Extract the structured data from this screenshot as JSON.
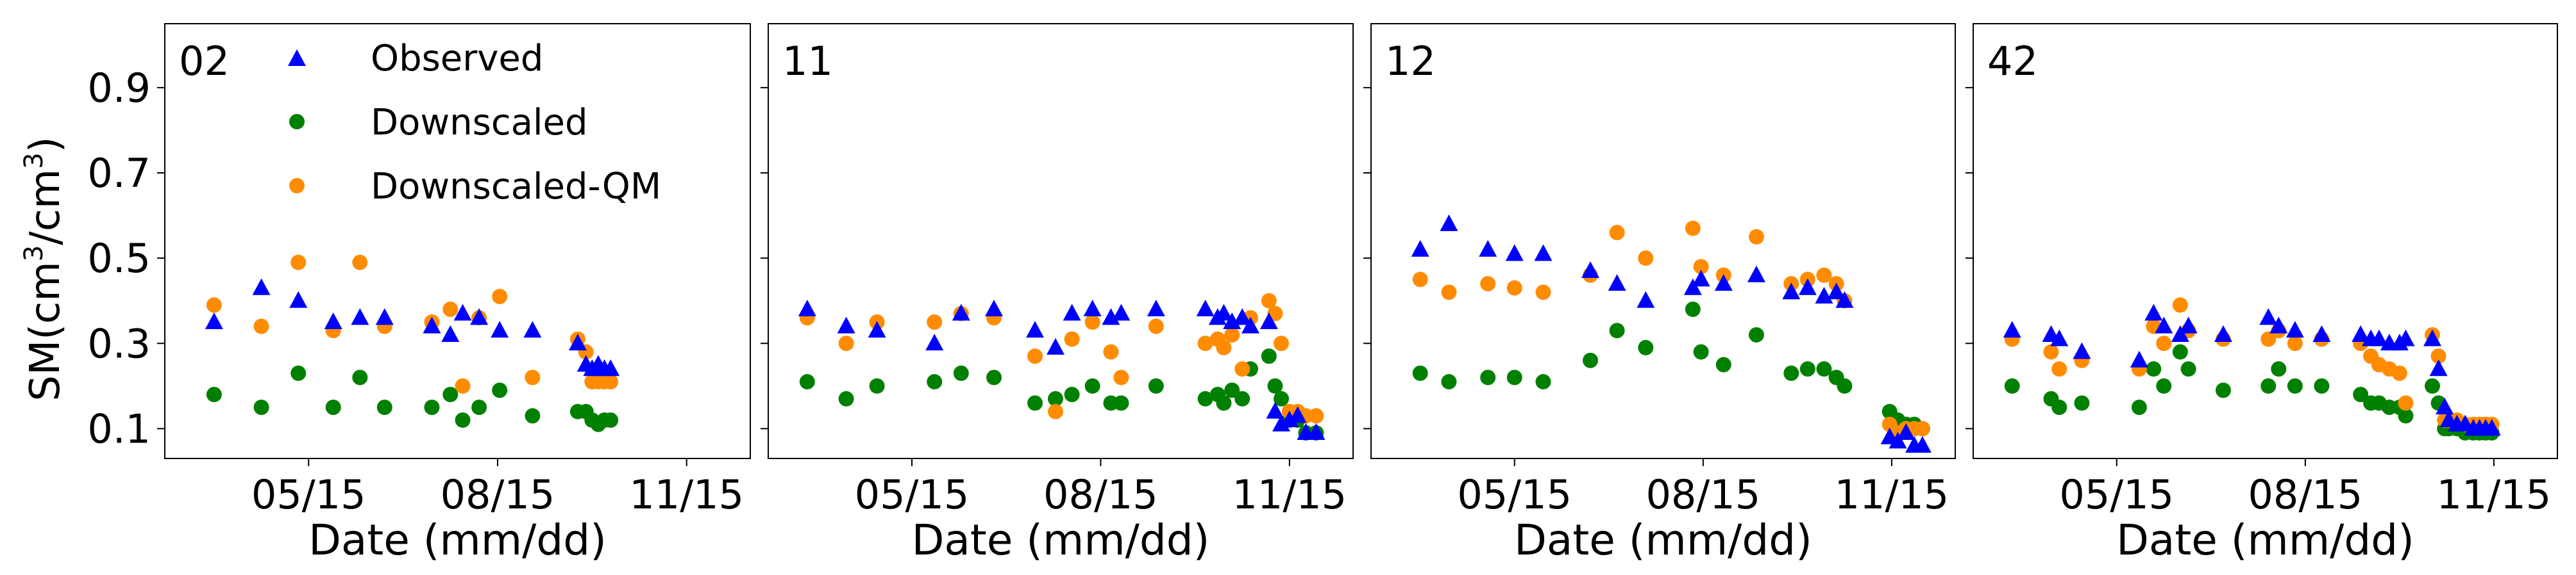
{
  "figure": {
    "ylabel_main": "SM(cm",
    "ylabel_exp1": "3",
    "ylabel_mid": "/cm",
    "ylabel_exp2": "3",
    "ylabel_close": ")",
    "xlabel": "Date (mm/dd)"
  },
  "legend": {
    "observed": "Observed",
    "downscaled": "Downscaled",
    "downscaled_qm": "Downscaled-QM"
  },
  "colors": {
    "observed": "#0000ff",
    "downscaled": "#008000",
    "downscaled_qm": "#ff8c00",
    "axis": "#000000"
  },
  "chart_data": [
    {
      "type": "scatter",
      "title": "02",
      "xlabel": "Date (mm/dd)",
      "ylabel": "SM(cm3/cm3)",
      "x_unit": "day of year",
      "xlim": [
        65,
        350
      ],
      "ylim": [
        0.03,
        1.05
      ],
      "xticks": [
        135,
        227,
        319
      ],
      "xtick_labels": [
        "05/15",
        "08/15",
        "11/15"
      ],
      "yticks": [
        0.1,
        0.3,
        0.5,
        0.7,
        0.9
      ],
      "ytick_labels": [
        "0.1",
        "0.3",
        "0.5",
        "0.7",
        "0.9"
      ],
      "series": [
        {
          "name": "Observed",
          "marker": "triangle",
          "x": [
            89,
            112,
            130,
            147,
            160,
            172,
            195,
            204,
            210,
            218,
            228,
            244,
            266,
            270,
            273,
            276,
            279,
            282
          ],
          "y": [
            0.35,
            0.43,
            0.4,
            0.35,
            0.36,
            0.36,
            0.34,
            0.32,
            0.37,
            0.36,
            0.33,
            0.33,
            0.3,
            0.25,
            0.24,
            0.25,
            0.24,
            0.24
          ]
        },
        {
          "name": "Downscaled",
          "marker": "circle",
          "x": [
            89,
            112,
            130,
            147,
            160,
            172,
            195,
            204,
            210,
            218,
            228,
            244,
            266,
            270,
            273,
            276,
            279,
            282
          ],
          "y": [
            0.18,
            0.15,
            0.23,
            0.15,
            0.22,
            0.15,
            0.15,
            0.18,
            0.12,
            0.15,
            0.19,
            0.13,
            0.14,
            0.14,
            0.12,
            0.11,
            0.12,
            0.12
          ]
        },
        {
          "name": "Downscaled-QM",
          "marker": "circle",
          "x": [
            89,
            112,
            130,
            147,
            160,
            172,
            195,
            204,
            210,
            218,
            228,
            244,
            266,
            270,
            273,
            276,
            279,
            282
          ],
          "y": [
            0.39,
            0.34,
            0.49,
            0.33,
            0.49,
            0.34,
            0.35,
            0.38,
            0.2,
            0.36,
            0.41,
            0.22,
            0.31,
            0.28,
            0.21,
            0.21,
            0.21,
            0.21
          ]
        }
      ]
    },
    {
      "type": "scatter",
      "title": "11",
      "xlabel": "Date (mm/dd)",
      "ylabel": "SM(cm3/cm3)",
      "x_unit": "day of year",
      "xlim": [
        65,
        350
      ],
      "ylim": [
        0.03,
        1.05
      ],
      "xticks": [
        135,
        227,
        319
      ],
      "xtick_labels": [
        "05/15",
        "08/15",
        "11/15"
      ],
      "yticks": [
        0.1,
        0.3,
        0.5,
        0.7,
        0.9
      ],
      "ytick_labels": [
        "0.1",
        "0.3",
        "0.5",
        "0.7",
        "0.9"
      ],
      "series": [
        {
          "name": "Observed",
          "marker": "triangle",
          "x": [
            84,
            103,
            118,
            146,
            159,
            175,
            195,
            205,
            213,
            223,
            232,
            237,
            254,
            278,
            284,
            287,
            291,
            296,
            300,
            309,
            312,
            315,
            319,
            323,
            327,
            332
          ],
          "y": [
            0.38,
            0.34,
            0.33,
            0.3,
            0.37,
            0.38,
            0.33,
            0.29,
            0.37,
            0.38,
            0.36,
            0.37,
            0.38,
            0.38,
            0.36,
            0.37,
            0.35,
            0.36,
            0.34,
            0.35,
            0.14,
            0.11,
            0.12,
            0.13,
            0.09,
            0.09
          ]
        },
        {
          "name": "Downscaled",
          "marker": "circle",
          "x": [
            84,
            103,
            118,
            146,
            159,
            175,
            195,
            205,
            213,
            223,
            232,
            237,
            254,
            278,
            284,
            287,
            291,
            296,
            300,
            309,
            312,
            315,
            319,
            323,
            327,
            332
          ],
          "y": [
            0.21,
            0.17,
            0.2,
            0.21,
            0.23,
            0.22,
            0.16,
            0.17,
            0.18,
            0.2,
            0.16,
            0.16,
            0.2,
            0.17,
            0.18,
            0.16,
            0.19,
            0.17,
            0.24,
            0.27,
            0.2,
            0.17,
            0.12,
            0.12,
            0.09,
            0.09
          ]
        },
        {
          "name": "Downscaled-QM",
          "marker": "circle",
          "x": [
            84,
            103,
            118,
            146,
            159,
            175,
            195,
            205,
            213,
            223,
            232,
            237,
            254,
            278,
            284,
            287,
            291,
            296,
            300,
            309,
            312,
            315,
            319,
            323,
            327,
            332
          ],
          "y": [
            0.36,
            0.3,
            0.35,
            0.35,
            0.37,
            0.36,
            0.27,
            0.14,
            0.31,
            0.35,
            0.28,
            0.22,
            0.34,
            0.3,
            0.31,
            0.29,
            0.32,
            0.24,
            0.36,
            0.4,
            0.37,
            0.3,
            0.14,
            0.14,
            0.13,
            0.13
          ]
        }
      ]
    },
    {
      "type": "scatter",
      "title": "12",
      "xlabel": "Date (mm/dd)",
      "ylabel": "SM(cm3/cm3)",
      "x_unit": "day of year",
      "xlim": [
        65,
        350
      ],
      "ylim": [
        0.03,
        1.05
      ],
      "xticks": [
        135,
        227,
        319
      ],
      "xtick_labels": [
        "05/15",
        "08/15",
        "11/15"
      ],
      "yticks": [
        0.1,
        0.3,
        0.5,
        0.7,
        0.9
      ],
      "ytick_labels": [
        "0.1",
        "0.3",
        "0.5",
        "0.7",
        "0.9"
      ],
      "series": [
        {
          "name": "Observed",
          "marker": "triangle",
          "x": [
            89,
            103,
            122,
            135,
            149,
            172,
            185,
            199,
            222,
            226,
            237,
            253,
            270,
            278,
            286,
            292,
            296,
            318,
            322,
            326,
            330,
            334
          ],
          "y": [
            0.52,
            0.58,
            0.52,
            0.51,
            0.51,
            0.47,
            0.44,
            0.4,
            0.43,
            0.45,
            0.44,
            0.46,
            0.42,
            0.43,
            0.41,
            0.42,
            0.4,
            0.08,
            0.07,
            0.09,
            0.06,
            0.06
          ]
        },
        {
          "name": "Downscaled",
          "marker": "circle",
          "x": [
            89,
            103,
            122,
            135,
            149,
            172,
            185,
            199,
            222,
            226,
            237,
            253,
            270,
            278,
            286,
            292,
            296,
            318,
            322,
            326,
            330,
            334
          ],
          "y": [
            0.23,
            0.21,
            0.22,
            0.22,
            0.21,
            0.26,
            0.33,
            0.29,
            0.38,
            0.28,
            0.25,
            0.32,
            0.23,
            0.24,
            0.24,
            0.22,
            0.2,
            0.14,
            0.12,
            0.11,
            0.11,
            0.1
          ]
        },
        {
          "name": "Downscaled-QM",
          "marker": "circle",
          "x": [
            89,
            103,
            122,
            135,
            149,
            172,
            185,
            199,
            222,
            226,
            237,
            253,
            270,
            278,
            286,
            292,
            296,
            318,
            322,
            326,
            330,
            334
          ],
          "y": [
            0.45,
            0.42,
            0.44,
            0.43,
            0.42,
            0.46,
            0.56,
            0.5,
            0.57,
            0.48,
            0.46,
            0.55,
            0.44,
            0.45,
            0.46,
            0.44,
            0.4,
            0.11,
            0.09,
            0.1,
            0.1,
            0.1
          ]
        }
      ]
    },
    {
      "type": "scatter",
      "title": "42",
      "xlabel": "Date (mm/dd)",
      "ylabel": "SM(cm3/cm3)",
      "x_unit": "day of year",
      "xlim": [
        65,
        350
      ],
      "ylim": [
        0.03,
        1.05
      ],
      "xticks": [
        135,
        227,
        319
      ],
      "xtick_labels": [
        "05/15",
        "08/15",
        "11/15"
      ],
      "yticks": [
        0.1,
        0.3,
        0.5,
        0.7,
        0.9
      ],
      "ytick_labels": [
        "0.1",
        "0.3",
        "0.5",
        "0.7",
        "0.9"
      ],
      "series": [
        {
          "name": "Observed",
          "marker": "triangle",
          "x": [
            84,
            103,
            107,
            118,
            146,
            153,
            158,
            166,
            170,
            187,
            209,
            214,
            222,
            235,
            254,
            259,
            263,
            268,
            273,
            276,
            289,
            292,
            295,
            297,
            301,
            305,
            309,
            312,
            315,
            318
          ],
          "y": [
            0.33,
            0.32,
            0.31,
            0.28,
            0.26,
            0.37,
            0.34,
            0.32,
            0.34,
            0.32,
            0.36,
            0.34,
            0.33,
            0.32,
            0.32,
            0.31,
            0.31,
            0.3,
            0.3,
            0.31,
            0.31,
            0.24,
            0.15,
            0.12,
            0.11,
            0.11,
            0.1,
            0.1,
            0.1,
            0.1
          ]
        },
        {
          "name": "Downscaled",
          "marker": "circle",
          "x": [
            84,
            103,
            107,
            118,
            146,
            153,
            158,
            166,
            170,
            187,
            209,
            214,
            222,
            235,
            254,
            259,
            263,
            268,
            273,
            276,
            289,
            292,
            295,
            297,
            301,
            305,
            309,
            312,
            315,
            318
          ],
          "y": [
            0.2,
            0.17,
            0.15,
            0.16,
            0.15,
            0.24,
            0.2,
            0.28,
            0.24,
            0.19,
            0.2,
            0.24,
            0.2,
            0.2,
            0.18,
            0.16,
            0.16,
            0.15,
            0.15,
            0.13,
            0.2,
            0.16,
            0.1,
            0.1,
            0.1,
            0.09,
            0.09,
            0.09,
            0.09,
            0.09
          ]
        },
        {
          "name": "Downscaled-QM",
          "marker": "circle",
          "x": [
            84,
            103,
            107,
            118,
            146,
            153,
            158,
            166,
            170,
            187,
            209,
            214,
            222,
            235,
            254,
            259,
            263,
            268,
            273,
            276,
            289,
            292,
            295,
            297,
            301,
            305,
            309,
            312,
            315,
            318
          ],
          "y": [
            0.31,
            0.28,
            0.24,
            0.26,
            0.24,
            0.34,
            0.3,
            0.39,
            0.33,
            0.31,
            0.31,
            0.33,
            0.3,
            0.31,
            0.3,
            0.27,
            0.25,
            0.24,
            0.23,
            0.16,
            0.32,
            0.27,
            0.12,
            0.12,
            0.12,
            0.11,
            0.11,
            0.11,
            0.11,
            0.11
          ]
        }
      ]
    }
  ]
}
